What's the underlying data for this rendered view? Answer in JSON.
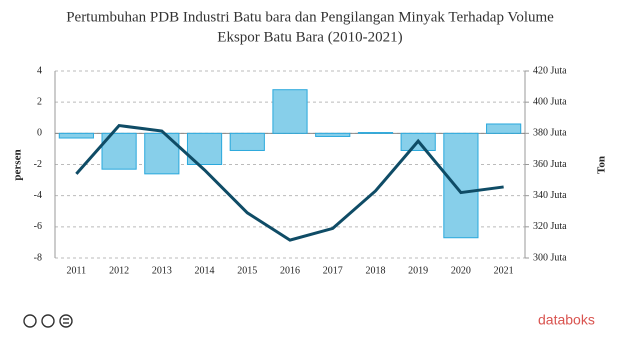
{
  "chart_data": {
    "type": "bar_line",
    "title": [
      "Pertumbuhan PDB Industri Batu bara dan Pengilangan Minyak Terhadap Volume",
      "Ekspor Batu Bara (2010-2021)"
    ],
    "y_label": "persen",
    "y2_label": "Ton",
    "categories": [
      "2011",
      "2012",
      "2013",
      "2014",
      "2015",
      "2016",
      "2017",
      "2018",
      "2019",
      "2020",
      "2021"
    ],
    "series": [
      {
        "type": "bar",
        "color": "#87cfea",
        "values": [
          -0.3,
          -2.3,
          -2.6,
          -2.0,
          -1.1,
          2.8,
          -0.2,
          0.05,
          -1.1,
          -6.7,
          0.6
        ]
      },
      {
        "type": "line",
        "color": "#0f4c66",
        "axis": "y2",
        "values": [
          354,
          385,
          381.5,
          356.5,
          329,
          311.5,
          319,
          343,
          375,
          342,
          345.6
        ]
      }
    ],
    "ylim": [
      -8,
      4
    ],
    "yticks": [
      -8,
      -6,
      -4,
      -2,
      0,
      2,
      4
    ],
    "y2lim": [
      300,
      420
    ],
    "y2ticks": [
      {
        "value": 300,
        "label": "300 Juta"
      },
      {
        "value": 320,
        "label": "320 Juta"
      },
      {
        "value": 340,
        "label": "340 Juta"
      },
      {
        "value": 360,
        "label": "360 Juta"
      },
      {
        "value": 380,
        "label": "380 Juta"
      },
      {
        "value": 400,
        "label": "400 Juta"
      },
      {
        "value": 420,
        "label": "420 Juta"
      }
    ],
    "grid": true
  },
  "brand": "databoks"
}
